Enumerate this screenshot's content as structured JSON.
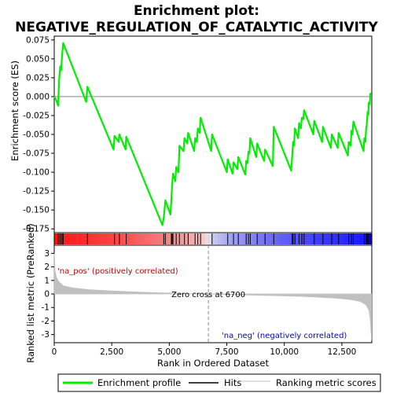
{
  "chart_data": {
    "type": "line",
    "title_line1": "Enrichment plot:",
    "title_line2": "NEGATIVE_REGULATION_OF_CATALYTIC_ACTIVITY",
    "top_panel": {
      "ylabel": "Enrichment score (ES)",
      "ylim": [
        -0.18,
        0.08
      ],
      "yticks": [
        0.075,
        0.05,
        0.025,
        0.0,
        -0.025,
        -0.05,
        -0.075,
        -0.1,
        -0.125,
        -0.15,
        -0.175
      ],
      "ytick_labels": [
        "0.075",
        "0.050",
        "0.025",
        "0.000",
        "-0.025",
        "-0.050",
        "-0.075",
        "-0.100",
        "-0.125",
        "-0.150",
        "-0.175"
      ],
      "series_name": "Enrichment profile",
      "color": "#00ee00",
      "points": [
        [
          0,
          0.0
        ],
        [
          90,
          -0.005
        ],
        [
          170,
          -0.012
        ],
        [
          210,
          0.02
        ],
        [
          260,
          0.04
        ],
        [
          300,
          0.035
        ],
        [
          340,
          0.055
        ],
        [
          390,
          0.071
        ],
        [
          1390,
          -0.007
        ],
        [
          1440,
          0.013
        ],
        [
          2580,
          -0.07
        ],
        [
          2620,
          -0.052
        ],
        [
          2800,
          -0.06
        ],
        [
          2830,
          -0.05
        ],
        [
          3100,
          -0.07
        ],
        [
          3130,
          -0.053
        ],
        [
          4700,
          -0.17
        ],
        [
          4760,
          -0.16
        ],
        [
          4830,
          -0.137
        ],
        [
          5050,
          -0.156
        ],
        [
          5090,
          -0.137
        ],
        [
          5120,
          -0.118
        ],
        [
          5160,
          -0.102
        ],
        [
          5260,
          -0.112
        ],
        [
          5300,
          -0.093
        ],
        [
          5400,
          -0.1
        ],
        [
          5440,
          -0.065
        ],
        [
          5620,
          -0.072
        ],
        [
          5660,
          -0.055
        ],
        [
          5780,
          -0.062
        ],
        [
          5820,
          -0.048
        ],
        [
          6080,
          -0.072
        ],
        [
          6120,
          -0.055
        ],
        [
          6200,
          -0.06
        ],
        [
          6240,
          -0.042
        ],
        [
          6320,
          -0.048
        ],
        [
          6360,
          -0.028
        ],
        [
          6820,
          -0.072
        ],
        [
          6860,
          -0.05
        ],
        [
          7500,
          -0.1
        ],
        [
          7540,
          -0.083
        ],
        [
          7750,
          -0.102
        ],
        [
          7790,
          -0.087
        ],
        [
          7960,
          -0.096
        ],
        [
          8000,
          -0.08
        ],
        [
          8300,
          -0.103
        ],
        [
          8340,
          -0.085
        ],
        [
          8400,
          -0.088
        ],
        [
          8440,
          -0.073
        ],
        [
          8480,
          -0.075
        ],
        [
          8520,
          -0.055
        ],
        [
          8780,
          -0.08
        ],
        [
          8820,
          -0.062
        ],
        [
          9120,
          -0.085
        ],
        [
          9160,
          -0.07
        ],
        [
          9500,
          -0.092
        ],
        [
          9540,
          -0.04
        ],
        [
          10300,
          -0.098
        ],
        [
          10340,
          -0.08
        ],
        [
          10380,
          -0.06
        ],
        [
          10420,
          -0.065
        ],
        [
          10460,
          -0.042
        ],
        [
          10600,
          -0.055
        ],
        [
          10640,
          -0.035
        ],
        [
          10720,
          -0.042
        ],
        [
          10760,
          -0.028
        ],
        [
          10820,
          -0.03
        ],
        [
          10860,
          -0.018
        ],
        [
          11260,
          -0.05
        ],
        [
          11300,
          -0.032
        ],
        [
          11640,
          -0.06
        ],
        [
          11680,
          -0.04
        ],
        [
          12020,
          -0.068
        ],
        [
          12060,
          -0.05
        ],
        [
          12320,
          -0.068
        ],
        [
          12360,
          -0.048
        ],
        [
          12760,
          -0.078
        ],
        [
          12800,
          -0.06
        ],
        [
          12880,
          -0.065
        ],
        [
          12920,
          -0.045
        ],
        [
          12960,
          -0.05
        ],
        [
          13000,
          -0.033
        ],
        [
          13440,
          -0.072
        ],
        [
          13480,
          -0.055
        ],
        [
          13520,
          -0.06
        ],
        [
          13560,
          -0.04
        ],
        [
          13580,
          -0.038
        ],
        [
          13620,
          -0.02
        ],
        [
          13650,
          -0.024
        ],
        [
          13670,
          -0.008
        ],
        [
          13710,
          -0.01
        ],
        [
          13740,
          0.004
        ],
        [
          13780,
          0.002
        ]
      ]
    },
    "hits": [
      170,
      260,
      340,
      390,
      1440,
      2620,
      2830,
      3130,
      4760,
      4830,
      5090,
      5120,
      5160,
      5300,
      5440,
      5660,
      5820,
      6120,
      6240,
      6360,
      6860,
      7540,
      7790,
      8000,
      8340,
      8440,
      8520,
      8820,
      9160,
      9540,
      10340,
      10380,
      10460,
      10640,
      10760,
      10860,
      11300,
      11680,
      12060,
      12360,
      12800,
      12920,
      13000,
      13480,
      13560,
      13580,
      13620,
      13670,
      13740
    ],
    "bottom_panel": {
      "ylabel": "Ranked list metric (PreRanked)",
      "ylim": [
        -3.6,
        3.6
      ],
      "yticks": [
        3,
        2,
        1,
        0,
        -1,
        -2,
        -3
      ],
      "ytick_labels": [
        "3",
        "2",
        "1",
        "0",
        "-1",
        "-2",
        "-3"
      ],
      "metric_profile": [
        [
          0,
          3.0
        ],
        [
          40,
          1.7
        ],
        [
          100,
          1.2
        ],
        [
          200,
          0.9
        ],
        [
          400,
          0.6
        ],
        [
          800,
          0.45
        ],
        [
          1500,
          0.32
        ],
        [
          2500,
          0.22
        ],
        [
          3500,
          0.15
        ],
        [
          4700,
          0.08
        ],
        [
          5800,
          0.03
        ],
        [
          6700,
          0.0
        ],
        [
          7800,
          -0.05
        ],
        [
          9000,
          -0.1
        ],
        [
          10300,
          -0.15
        ],
        [
          11300,
          -0.22
        ],
        [
          12200,
          -0.3
        ],
        [
          12900,
          -0.42
        ],
        [
          13300,
          -0.55
        ],
        [
          13550,
          -0.8
        ],
        [
          13680,
          -1.2
        ],
        [
          13740,
          -2.0
        ],
        [
          13790,
          -3.4
        ]
      ],
      "metric_color": "#c0c0c0",
      "zero_cross_text": "Zero cross at 6700",
      "zero_cross_rank": 6700,
      "pos_label": "'na_pos' (positively correlated)",
      "neg_label": "'na_neg' (negatively correlated)",
      "pos_color": "#cc0000",
      "neg_color": "#0000cc"
    },
    "x_axis": {
      "xlabel": "Rank in Ordered Dataset",
      "xlim": [
        0,
        13800
      ],
      "xticks": [
        0,
        2500,
        5000,
        7500,
        10000,
        12500
      ],
      "xtick_labels": [
        "0",
        "2,500",
        "5,000",
        "7,500",
        "10,000",
        "12,500"
      ]
    },
    "legend": [
      {
        "label": "Enrichment profile",
        "color": "#00ee00"
      },
      {
        "label": "Hits",
        "color": "#000000"
      },
      {
        "label": "Ranking metric scores",
        "color": "#c0c0c0"
      }
    ]
  }
}
